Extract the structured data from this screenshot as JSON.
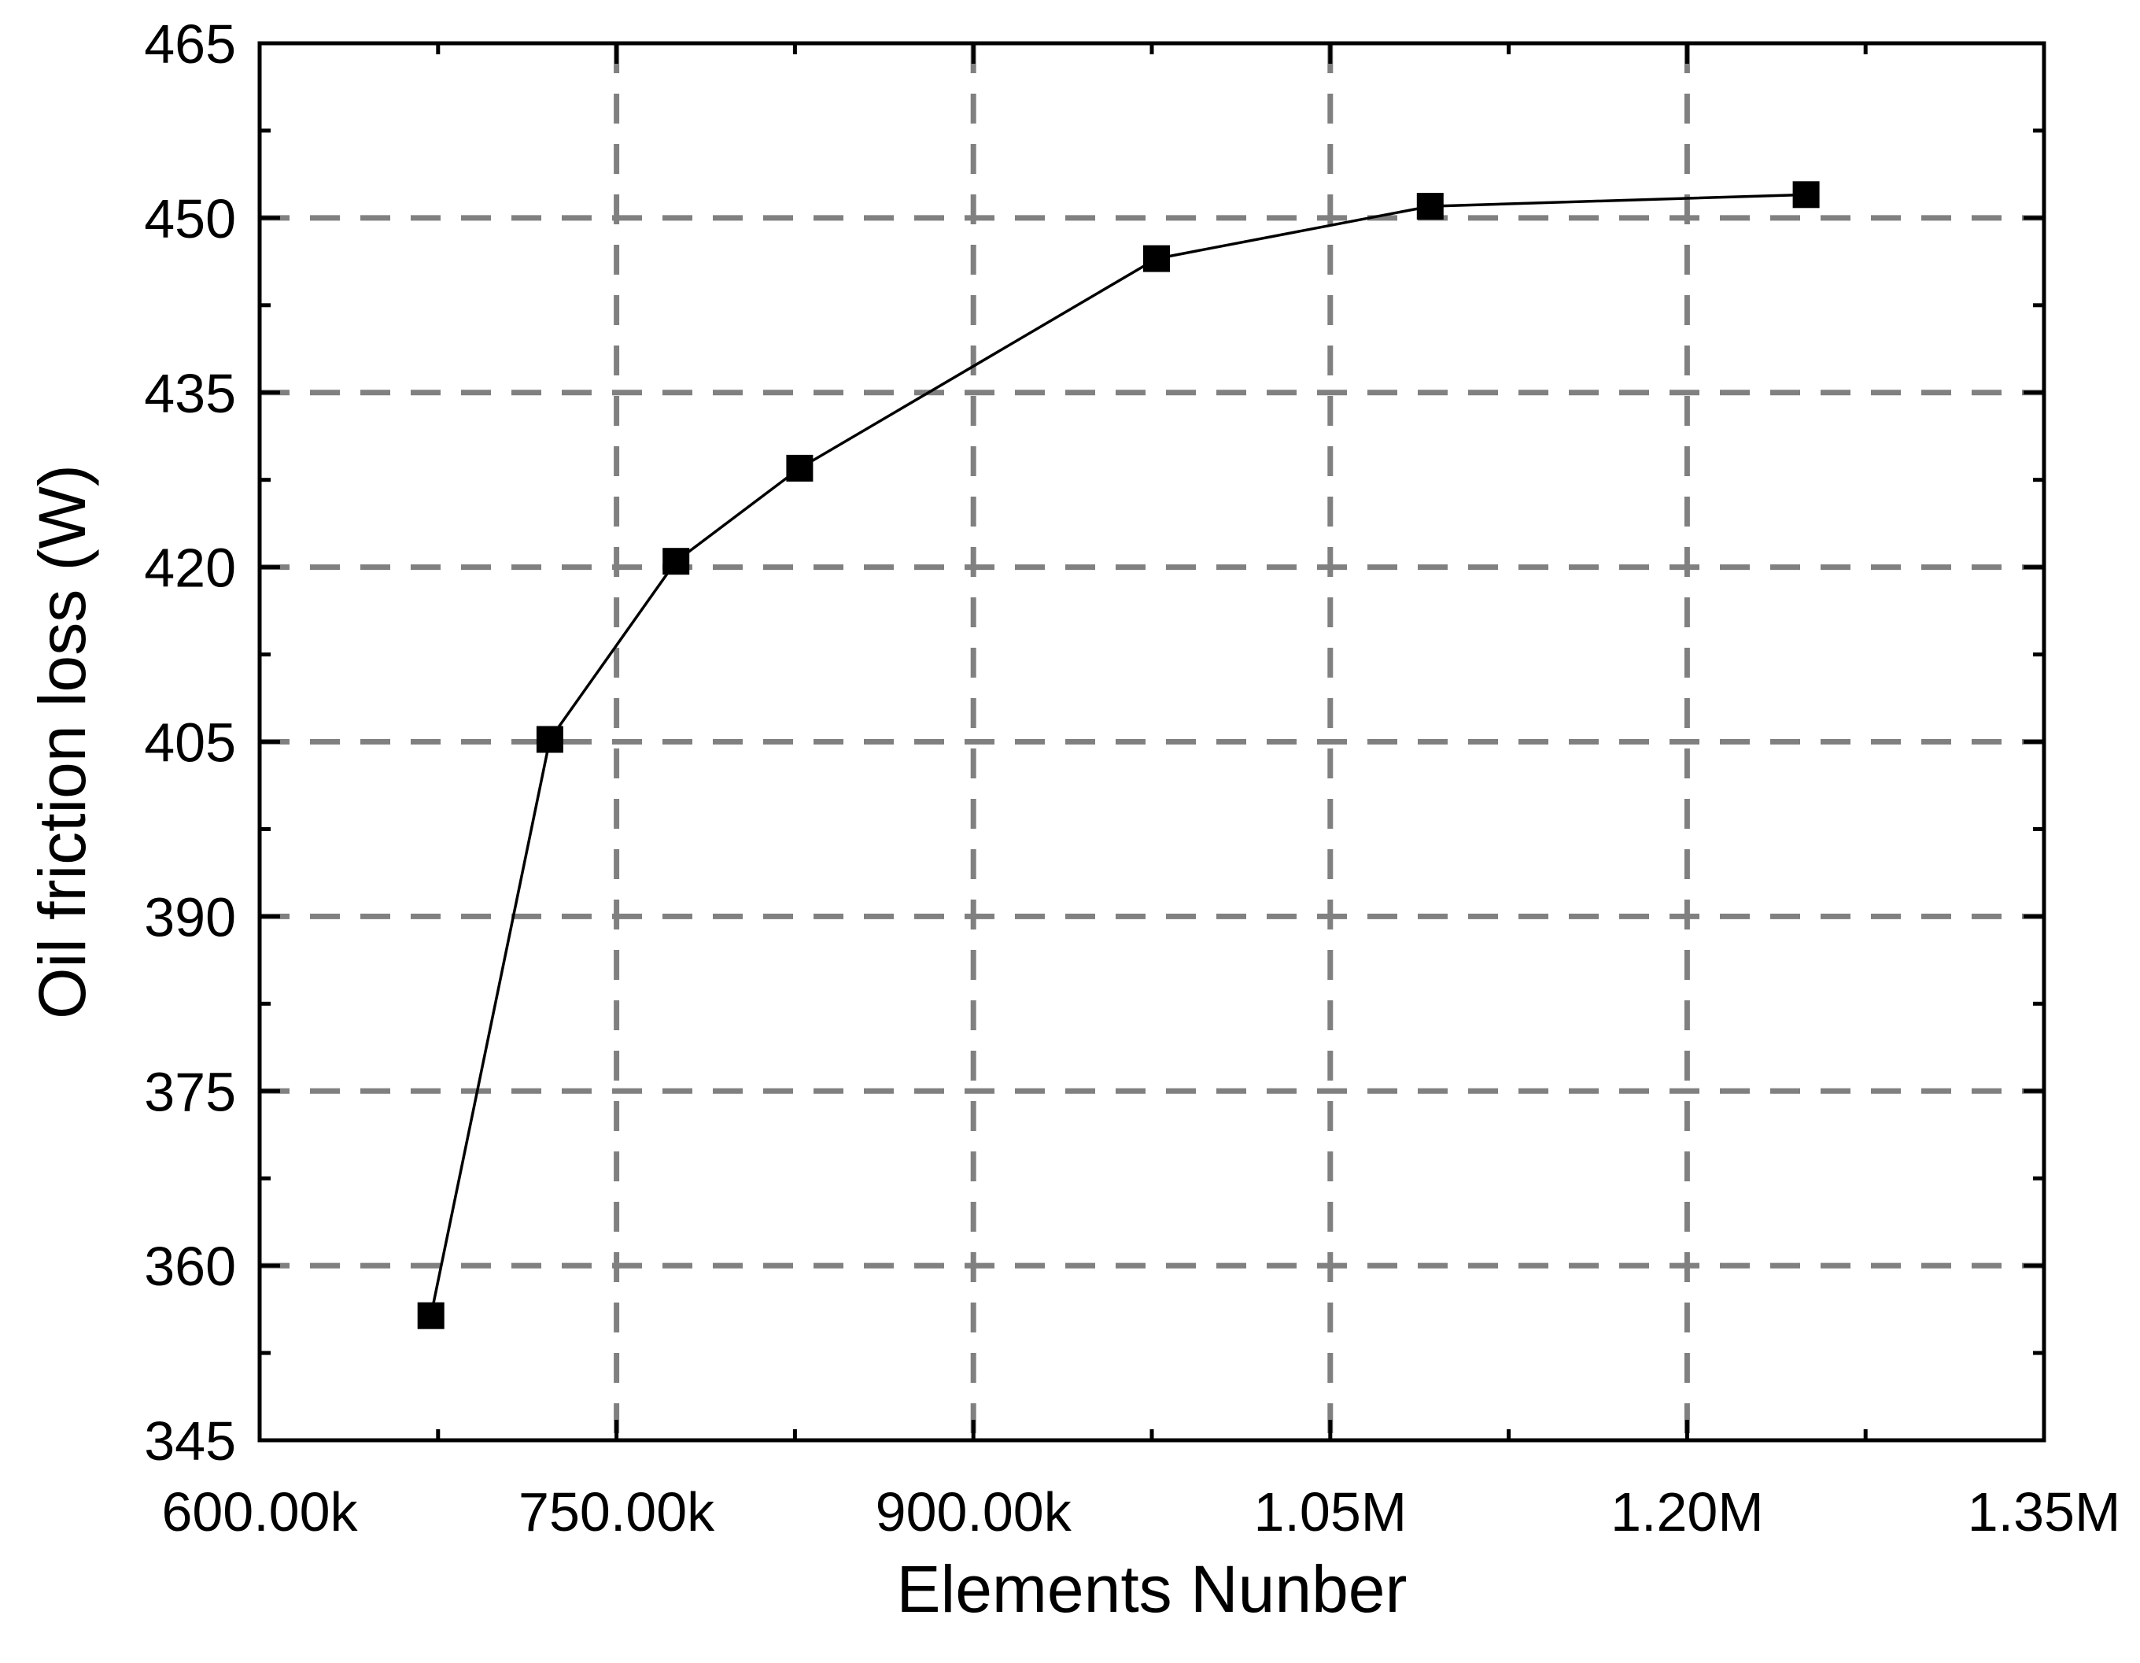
{
  "chart_data": {
    "type": "line",
    "title": "",
    "xlabel": "Elements Nunber",
    "ylabel": "Oil friction loss (W)",
    "xlim": [
      600000,
      1350000
    ],
    "ylim": [
      345,
      465
    ],
    "x_ticks": [
      600000,
      750000,
      900000,
      1050000,
      1200000,
      1350000
    ],
    "x_tick_labels": [
      "600.00k",
      "750.00k",
      "900.00k",
      "1.05M",
      "1.20M",
      "1.35M"
    ],
    "y_ticks": [
      345,
      360,
      375,
      390,
      405,
      420,
      435,
      450,
      465
    ],
    "y_tick_labels": [
      "345",
      "360",
      "375",
      "390",
      "405",
      "420",
      "435",
      "450",
      "465"
    ],
    "grid": true,
    "legend": "none",
    "series": [
      {
        "color": "#000000",
        "marker": "square",
        "x": [
          672000,
          722000,
          775000,
          827000,
          977000,
          1092000,
          1250000
        ],
        "y": [
          355.7,
          405.2,
          420.5,
          428.5,
          446.5,
          451.0,
          452.0
        ]
      }
    ]
  }
}
